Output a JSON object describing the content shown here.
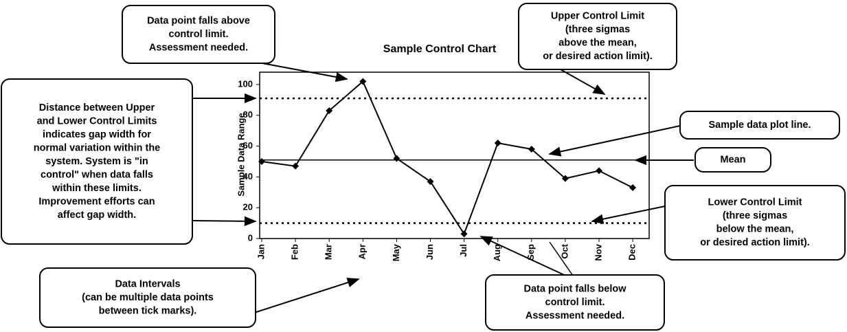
{
  "chart_data": {
    "type": "line",
    "title": "Sample Control Chart",
    "y_label": "Sample Data Range",
    "categories": [
      "Jan",
      "Feb",
      "Mar",
      "Apr",
      "May",
      "Jun",
      "Jul",
      "Aug",
      "Sep",
      "Oct",
      "Nov",
      "Dec"
    ],
    "series": [
      {
        "name": "Sample data",
        "color": "#000000",
        "values": [
          50,
          47,
          83,
          102,
          52,
          37,
          3,
          62,
          58,
          39,
          44,
          33
        ]
      }
    ],
    "mean": 51,
    "upper_control_limit": 91,
    "lower_control_limit": 10,
    "ylim": [
      0,
      108
    ],
    "yticks": [
      0,
      20,
      40,
      60,
      80,
      100
    ],
    "annotations": [
      {
        "lines": [
          "Data point falls above",
          "control limit.",
          "Assessment needed."
        ]
      },
      {
        "lines": [
          "Upper Control Limit",
          "(three sigmas",
          "above the mean,",
          "or desired action limit)."
        ]
      },
      {
        "lines": [
          "Distance between Upper",
          "and Lower Control Limits",
          "indicates gap width for",
          "normal variation within the",
          "system.  System is \"in",
          "control\" when data falls",
          "within these limits.",
          "Improvement efforts can",
          "affect gap width."
        ]
      },
      {
        "lines": [
          "Sample data plot line."
        ]
      },
      {
        "lines": [
          "Mean"
        ]
      },
      {
        "lines": [
          "Lower Control Limit",
          "(three sigmas",
          "below the mean,",
          "or desired action limit)."
        ]
      },
      {
        "lines": [
          "Data Intervals",
          "(can be multiple data points",
          "between tick marks)."
        ]
      },
      {
        "lines": [
          "Data point falls below",
          "control limit.",
          "Assessment needed."
        ]
      }
    ]
  }
}
